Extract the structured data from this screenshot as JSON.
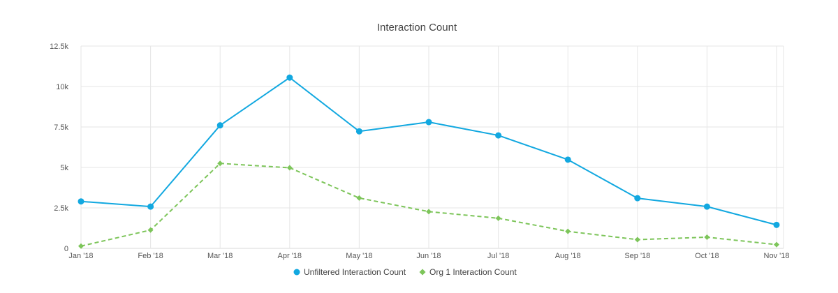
{
  "chart_data": {
    "type": "line",
    "title": "Interaction Count",
    "xlabel": "",
    "ylabel": "",
    "categories": [
      "Jan '18",
      "Feb '18",
      "Mar '18",
      "Apr '18",
      "May '18",
      "Jun '18",
      "Jul '18",
      "Aug '18",
      "Sep '18",
      "Oct '18",
      "Nov '18"
    ],
    "ylim": [
      0,
      12500
    ],
    "yticks": [
      0,
      2500,
      5000,
      7500,
      10000,
      12500
    ],
    "ytick_labels": [
      "0",
      "2.5k",
      "5k",
      "7.5k",
      "10k",
      "12.5k"
    ],
    "grid": true,
    "legend_position": "bottom-center",
    "series": [
      {
        "name": "Unfiltered Interaction Count",
        "color": "#12a8e0",
        "dash": "solid",
        "marker": "circle",
        "values": [
          2900,
          2580,
          7600,
          10550,
          7230,
          7800,
          6980,
          5480,
          3100,
          2580,
          1450
        ]
      },
      {
        "name": "Org 1 Interaction Count",
        "color": "#7dc55a",
        "dash": "dashed",
        "marker": "diamond",
        "values": [
          140,
          1130,
          5250,
          4980,
          3110,
          2270,
          1860,
          1050,
          540,
          690,
          230
        ]
      }
    ]
  }
}
